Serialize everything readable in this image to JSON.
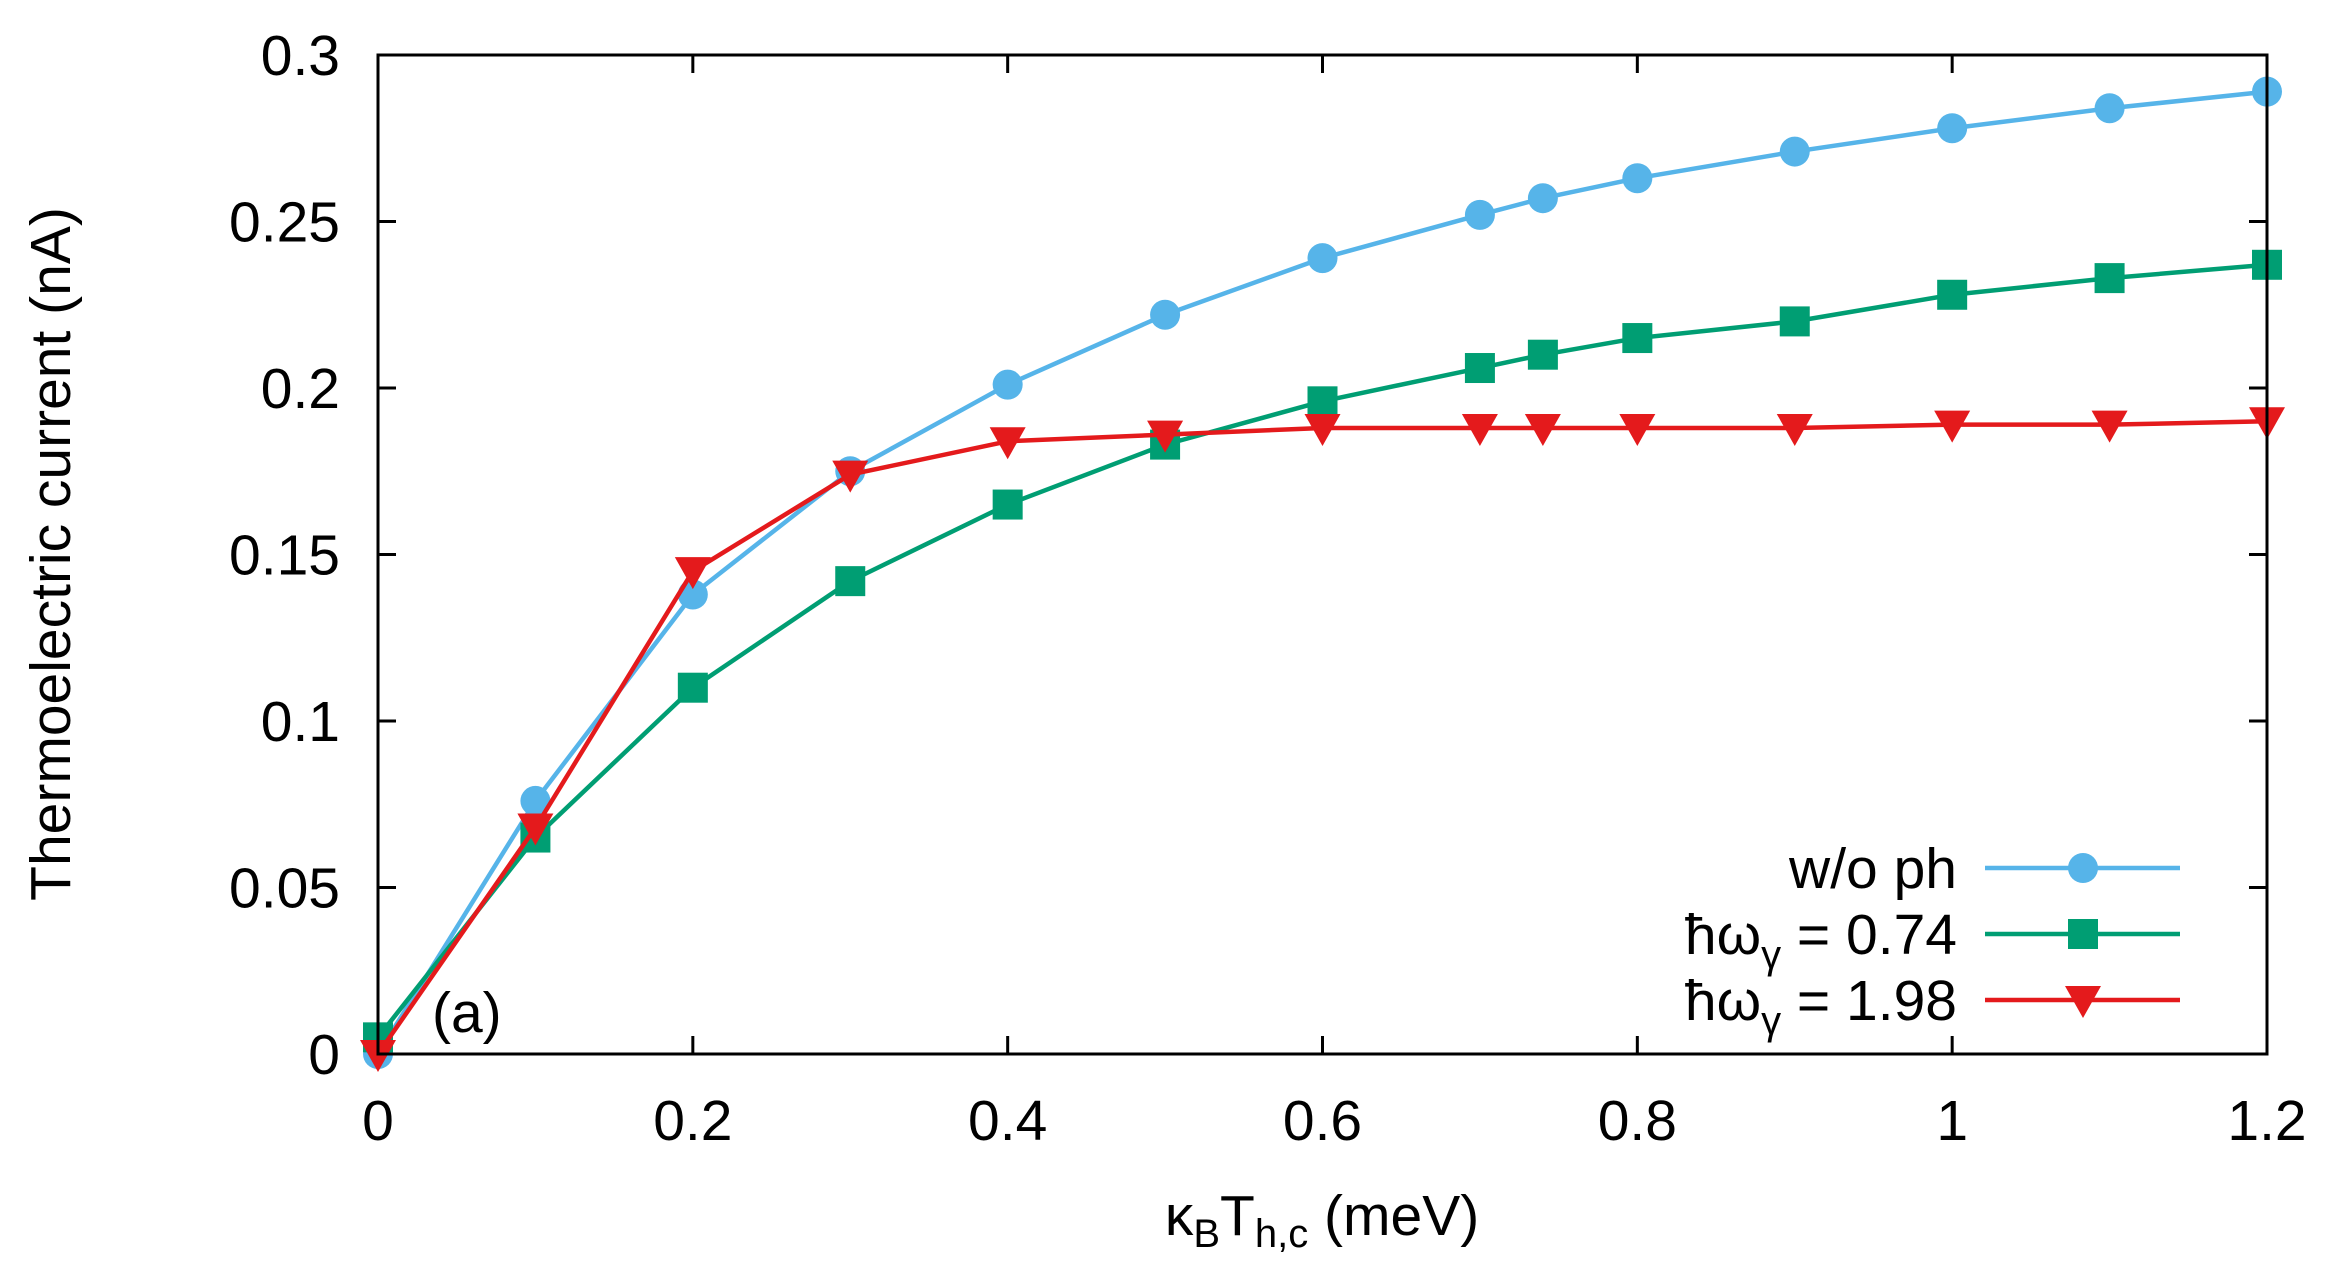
{
  "chart_data": {
    "type": "line",
    "panel_label": "(a)",
    "xlabel": {
      "main": "κ",
      "sub1": "B",
      "main2": "T",
      "sub2": "h,c",
      "tail": " (meV)"
    },
    "ylabel": "Thermoelectric current (nA)",
    "xlim": [
      0,
      1.2
    ],
    "ylim": [
      0,
      0.3
    ],
    "x_ticks": [
      0,
      0.2,
      0.4,
      0.6,
      0.8,
      1,
      1.2
    ],
    "x_tick_labels": [
      "0",
      "0.2",
      "0.4",
      "0.6",
      "0.8",
      "1",
      "1.2"
    ],
    "y_ticks": [
      0,
      0.05,
      0.1,
      0.15,
      0.2,
      0.25,
      0.3
    ],
    "y_tick_labels": [
      "0",
      "0.05",
      "0.1",
      "0.15",
      "0.2",
      "0.25",
      "0.3"
    ],
    "grid": false,
    "legend_position": "bottom-right",
    "series": [
      {
        "name": "w/o ph",
        "legend": {
          "main": "w/o ph",
          "sub": "",
          "tail": ""
        },
        "color": "#56B4E9",
        "marker": "circle",
        "x": [
          0,
          0.1,
          0.2,
          0.3,
          0.4,
          0.5,
          0.6,
          0.7,
          0.74,
          0.8,
          0.9,
          1.0,
          1.1,
          1.2
        ],
        "y": [
          0,
          0.076,
          0.138,
          0.175,
          0.201,
          0.222,
          0.239,
          0.252,
          0.257,
          0.263,
          0.271,
          0.278,
          0.284,
          0.289
        ]
      },
      {
        "name": "ħωγ = 0.74",
        "legend": {
          "main": "ħω",
          "sub": "γ",
          "tail": " = 0.74"
        },
        "color": "#009E73",
        "marker": "square",
        "x": [
          0,
          0.1,
          0.2,
          0.3,
          0.4,
          0.5,
          0.6,
          0.7,
          0.74,
          0.8,
          0.9,
          1.0,
          1.1,
          1.2
        ],
        "y": [
          0.005,
          0.065,
          0.11,
          0.142,
          0.165,
          0.183,
          0.196,
          0.206,
          0.21,
          0.215,
          0.22,
          0.228,
          0.233,
          0.237
        ]
      },
      {
        "name": "ħωγ = 1.98",
        "legend": {
          "main": "ħω",
          "sub": "γ",
          "tail": " = 1.98"
        },
        "color": "#E41A1C",
        "marker": "triangle-down",
        "x": [
          0,
          0.1,
          0.2,
          0.3,
          0.4,
          0.5,
          0.6,
          0.7,
          0.74,
          0.8,
          0.9,
          1.0,
          1.1,
          1.2
        ],
        "y": [
          0,
          0.068,
          0.145,
          0.174,
          0.184,
          0.186,
          0.188,
          0.188,
          0.188,
          0.188,
          0.188,
          0.189,
          0.189,
          0.19
        ]
      }
    ]
  }
}
